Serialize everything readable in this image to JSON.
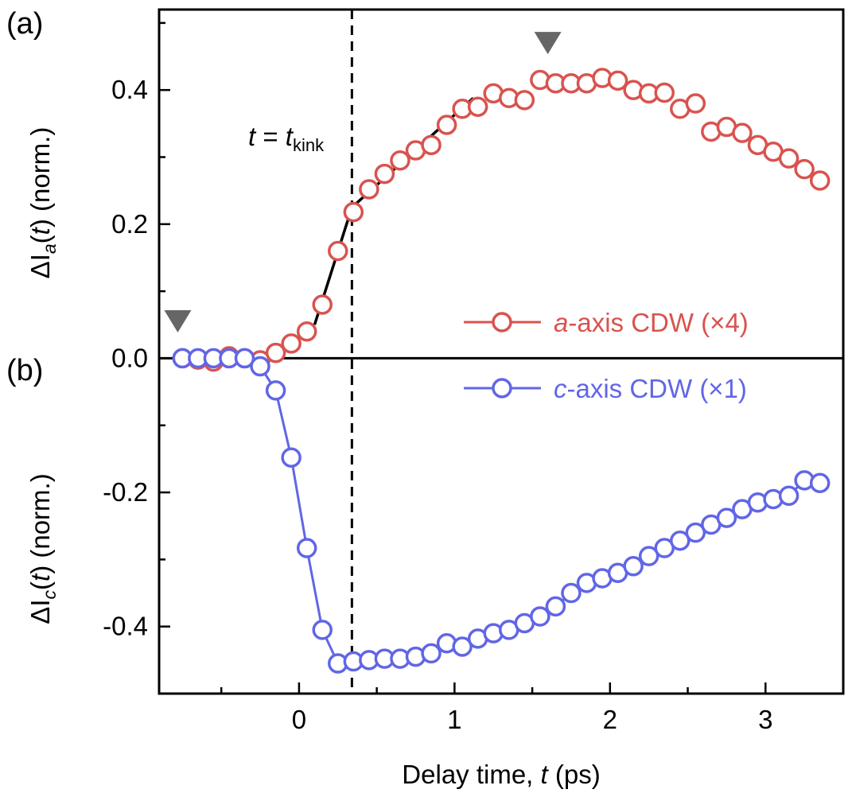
{
  "chart_data": {
    "type": "scatter",
    "panel_labels": [
      "(a)",
      "(b)"
    ],
    "xlabel": "Delay time, ",
    "xlabel_var": "t",
    "xlabel_unit": " (ps)",
    "xlim": [
      -0.9,
      3.5
    ],
    "ylim": [
      -0.5,
      0.52
    ],
    "x_ticks": [
      0,
      1,
      2,
      3
    ],
    "x_tick_labels": [
      "0",
      "1",
      "2",
      "3"
    ],
    "y_ticks": [
      0.4,
      0.2,
      0.0,
      -0.2,
      -0.4
    ],
    "y_tick_labels": [
      "0.4",
      "0.2",
      "0.0",
      "-0.2",
      "-0.4"
    ],
    "ylabel_top": {
      "prefix": "ΔI",
      "sub": "a",
      "rest": "(t) (norm.)"
    },
    "ylabel_bottom": {
      "prefix": "ΔI",
      "sub": "c",
      "rest": "(t) (norm.)"
    },
    "kink_label": {
      "lhs": "t",
      "eq": " = ",
      "rhs": "t",
      "sub": "kink"
    },
    "kink_x": 0.34,
    "colors": {
      "a_axis": "#d9534f",
      "c_axis": "#6166e6",
      "axis": "#000000",
      "marker": "#666666"
    },
    "series": [
      {
        "name": "a-axis CDW (×4)",
        "legend_italic": "a",
        "legend_rest": "-axis CDW (×4)",
        "connected": false,
        "x": [
          -0.75,
          -0.65,
          -0.55,
          -0.45,
          -0.35,
          -0.25,
          -0.15,
          -0.05,
          0.05,
          0.15,
          0.25,
          0.35,
          0.45,
          0.55,
          0.65,
          0.75,
          0.85,
          0.95,
          1.05,
          1.15,
          1.25,
          1.35,
          1.45,
          1.55,
          1.65,
          1.75,
          1.85,
          1.95,
          2.05,
          2.15,
          2.25,
          2.35,
          2.45,
          2.55,
          2.65,
          2.75,
          2.85,
          2.95,
          3.05,
          3.15,
          3.25,
          3.35
        ],
        "y": [
          0.0,
          -0.002,
          -0.005,
          0.003,
          0.0,
          -0.003,
          0.008,
          0.022,
          0.04,
          0.08,
          0.16,
          0.218,
          0.252,
          0.275,
          0.295,
          0.31,
          0.318,
          0.348,
          0.372,
          0.375,
          0.395,
          0.388,
          0.385,
          0.415,
          0.41,
          0.41,
          0.41,
          0.418,
          0.414,
          0.4,
          0.395,
          0.396,
          0.372,
          0.38,
          0.338,
          0.345,
          0.336,
          0.318,
          0.308,
          0.298,
          0.282,
          0.265
        ]
      },
      {
        "name": "c-axis CDW (×1)",
        "legend_italic": "c",
        "legend_rest": "-axis CDW (×1)",
        "connected": true,
        "x": [
          -0.75,
          -0.65,
          -0.55,
          -0.45,
          -0.35,
          -0.25,
          -0.15,
          -0.05,
          0.05,
          0.15,
          0.25,
          0.35,
          0.45,
          0.55,
          0.65,
          0.75,
          0.85,
          0.95,
          1.05,
          1.15,
          1.25,
          1.35,
          1.45,
          1.55,
          1.65,
          1.75,
          1.85,
          1.95,
          2.05,
          2.15,
          2.25,
          2.35,
          2.45,
          2.55,
          2.65,
          2.75,
          2.85,
          2.95,
          3.05,
          3.15,
          3.25,
          3.35
        ],
        "y": [
          0.0,
          0.0,
          0.0,
          0.0,
          0.0,
          -0.012,
          -0.048,
          -0.148,
          -0.283,
          -0.405,
          -0.455,
          -0.452,
          -0.45,
          -0.448,
          -0.448,
          -0.445,
          -0.44,
          -0.425,
          -0.43,
          -0.418,
          -0.41,
          -0.405,
          -0.395,
          -0.385,
          -0.37,
          -0.35,
          -0.335,
          -0.328,
          -0.32,
          -0.31,
          -0.295,
          -0.283,
          -0.272,
          -0.26,
          -0.248,
          -0.238,
          -0.225,
          -0.215,
          -0.21,
          -0.205,
          -0.182,
          -0.186
        ]
      }
    ],
    "fit_lines": [
      {
        "x": [
          0.1,
          0.34
        ],
        "y": [
          0.05,
          0.225
        ]
      },
      {
        "x": [
          0.34,
          1.12
        ],
        "y": [
          0.225,
          0.388
        ]
      }
    ],
    "triangle_markers": [
      {
        "x": -0.78,
        "y": 0.055
      },
      {
        "x": 1.6,
        "y": 0.47
      }
    ]
  }
}
